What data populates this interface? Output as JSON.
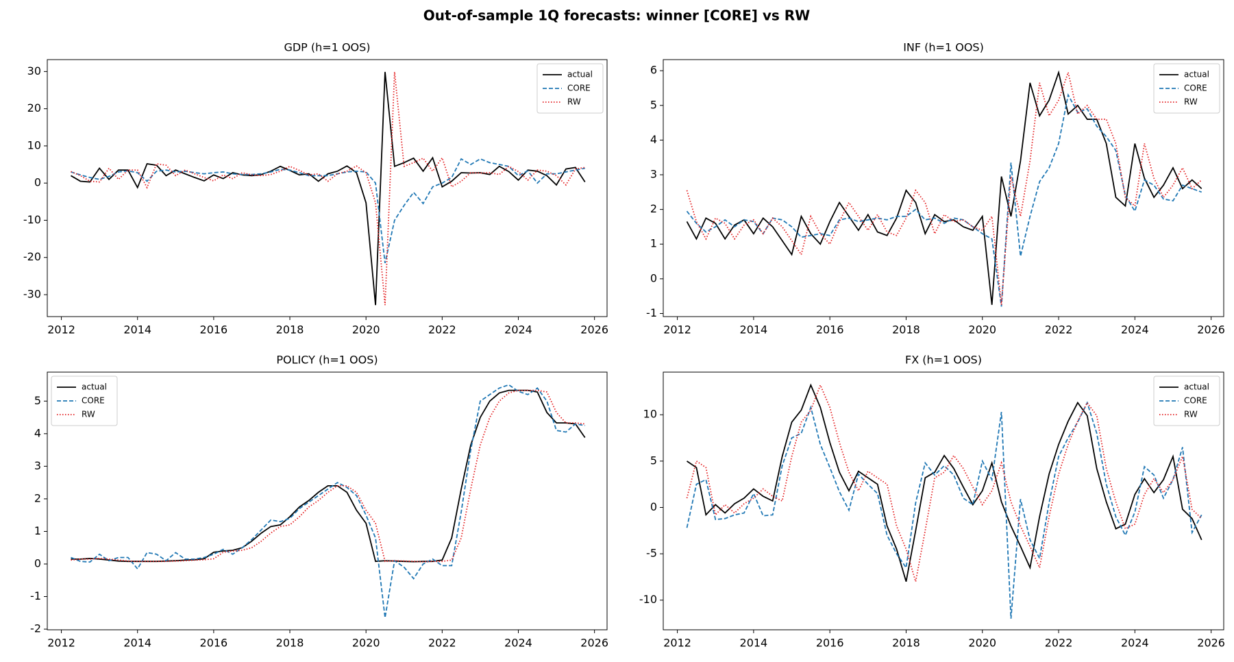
{
  "title": "Out-of-sample 1Q forecasts: winner [CORE] vs RW",
  "chart_data": [
    {
      "type": "line",
      "title": "GDP  (h=1 OOS)",
      "legend": "upper right",
      "grid": false,
      "xlim": [
        2011.63,
        2026.33
      ],
      "xticks": [
        2012,
        2014,
        2016,
        2018,
        2020,
        2022,
        2024,
        2026
      ],
      "ylim": [
        -35.9,
        33.2
      ],
      "yticks": [
        -30,
        -20,
        -10,
        0,
        10,
        20,
        30
      ],
      "x": [
        2012.25,
        2012.5,
        2012.75,
        2013,
        2013.25,
        2013.5,
        2013.75,
        2014,
        2014.25,
        2014.5,
        2014.75,
        2015,
        2015.25,
        2015.5,
        2015.75,
        2016,
        2016.25,
        2016.5,
        2016.75,
        2017,
        2017.25,
        2017.5,
        2017.75,
        2018,
        2018.25,
        2018.5,
        2018.75,
        2019,
        2019.25,
        2019.5,
        2019.75,
        2020,
        2020.25,
        2020.5,
        2020.75,
        2021,
        2021.25,
        2021.5,
        2021.75,
        2022,
        2022.25,
        2022.5,
        2022.75,
        2023,
        2023.25,
        2023.5,
        2023.75,
        2024,
        2024.25,
        2024.5,
        2024.75,
        2025,
        2025.25,
        2025.5,
        2025.75
      ],
      "series": [
        {
          "name": "actual",
          "color": "#000000",
          "style": "solid",
          "values": [
            2,
            0.5,
            0.3,
            4,
            1,
            3.5,
            3.5,
            -1.2,
            5.2,
            4.8,
            2,
            3.5,
            2.5,
            1.5,
            0.6,
            2.2,
            1.2,
            2.8,
            2.2,
            2,
            2.3,
            3.2,
            4.5,
            3.4,
            2.2,
            2.5,
            0.5,
            2.5,
            3.2,
            4.6,
            2.8,
            -5.3,
            -32.8,
            29.9,
            4.5,
            5.5,
            6.7,
            3.2,
            6.8,
            -1,
            0.5,
            2.8,
            2.7,
            2.8,
            2.3,
            4.5,
            3.1,
            0.8,
            3.5,
            3.2,
            2,
            -0.5,
            3.8,
            4.2,
            0.3
          ]
        },
        {
          "name": "CORE",
          "color": "#1f77b4",
          "style": "dashed",
          "values": [
            3,
            2.2,
            1.5,
            1,
            1.8,
            3,
            3.3,
            2.8,
            0.5,
            3.2,
            3.5,
            3,
            3.2,
            2.8,
            2.5,
            2.8,
            3,
            2.5,
            2.3,
            2.3,
            2.5,
            3,
            3.7,
            3.5,
            2.8,
            2,
            2,
            2,
            2.5,
            3,
            3.2,
            3,
            0,
            -21.5,
            -10,
            -6,
            -2.5,
            -5.5,
            -1,
            0,
            1.5,
            6.5,
            5,
            6.5,
            5.5,
            5,
            4.5,
            2,
            3.3,
            0,
            2.5,
            2.5,
            3,
            3.5,
            4
          ]
        },
        {
          "name": "RW",
          "color": "#e31a1c",
          "style": "dotted",
          "values": [
            3.1,
            2,
            0.5,
            0.3,
            4,
            1,
            3.5,
            3.5,
            -1.2,
            5.2,
            4.8,
            2,
            3.5,
            2.5,
            1.5,
            0.6,
            2.2,
            1.2,
            2.8,
            2.2,
            2,
            2.3,
            3.2,
            4.5,
            3.4,
            2.2,
            2.5,
            0.5,
            2.5,
            3.2,
            4.6,
            2.8,
            -5.3,
            -32.8,
            29.9,
            4.5,
            5.5,
            6.7,
            3.2,
            6.8,
            -1,
            0.5,
            2.8,
            2.7,
            2.8,
            2.3,
            4.5,
            3.1,
            0.8,
            3.5,
            3.2,
            2,
            -0.5,
            3.8,
            4.2
          ]
        }
      ]
    },
    {
      "type": "line",
      "title": "INF  (h=1 OOS)",
      "legend": "upper right",
      "grid": false,
      "xlim": [
        2011.63,
        2026.33
      ],
      "xticks": [
        2012,
        2014,
        2016,
        2018,
        2020,
        2022,
        2024,
        2026
      ],
      "ylim": [
        -1.09,
        6.32
      ],
      "yticks": [
        -1,
        0,
        1,
        2,
        3,
        4,
        5,
        6
      ],
      "x": [
        2012.25,
        2012.5,
        2012.75,
        2013,
        2013.25,
        2013.5,
        2013.75,
        2014,
        2014.25,
        2014.5,
        2014.75,
        2015,
        2015.25,
        2015.5,
        2015.75,
        2016,
        2016.25,
        2016.5,
        2016.75,
        2017,
        2017.25,
        2017.5,
        2017.75,
        2018,
        2018.25,
        2018.5,
        2018.75,
        2019,
        2019.25,
        2019.5,
        2019.75,
        2020,
        2020.25,
        2020.5,
        2020.75,
        2021,
        2021.25,
        2021.5,
        2021.75,
        2022,
        2022.25,
        2022.5,
        2022.75,
        2023,
        2023.25,
        2023.5,
        2023.75,
        2024,
        2024.25,
        2024.5,
        2024.75,
        2025,
        2025.25,
        2025.5,
        2025.75
      ],
      "series": [
        {
          "name": "actual",
          "color": "#000000",
          "style": "solid",
          "values": [
            1.65,
            1.15,
            1.75,
            1.6,
            1.15,
            1.55,
            1.7,
            1.3,
            1.75,
            1.5,
            1.1,
            0.7,
            1.8,
            1.3,
            1.0,
            1.65,
            2.2,
            1.8,
            1.4,
            1.85,
            1.35,
            1.25,
            1.75,
            2.55,
            2.2,
            1.3,
            1.85,
            1.65,
            1.7,
            1.5,
            1.4,
            1.8,
            -0.75,
            2.95,
            1.8,
            3.4,
            5.65,
            4.7,
            5.15,
            5.95,
            4.75,
            5.0,
            4.6,
            4.6,
            3.9,
            2.35,
            2.1,
            3.9,
            2.9,
            2.35,
            2.7,
            3.2,
            2.6,
            2.85,
            2.6
          ]
        },
        {
          "name": "CORE",
          "color": "#1f77b4",
          "style": "dashed",
          "values": [
            1.95,
            1.6,
            1.35,
            1.5,
            1.7,
            1.5,
            1.7,
            1.65,
            1.3,
            1.75,
            1.7,
            1.5,
            1.2,
            1.25,
            1.3,
            1.25,
            1.7,
            1.75,
            1.65,
            1.7,
            1.75,
            1.7,
            1.8,
            1.8,
            2.0,
            1.7,
            1.75,
            1.6,
            1.75,
            1.7,
            1.5,
            1.3,
            1.15,
            -0.8,
            3.35,
            0.65,
            1.8,
            2.8,
            3.2,
            3.9,
            5.3,
            4.8,
            4.9,
            4.4,
            4.1,
            3.7,
            2.4,
            1.95,
            2.85,
            2.7,
            2.3,
            2.25,
            2.7,
            2.6,
            2.5
          ]
        },
        {
          "name": "RW",
          "color": "#e31a1c",
          "style": "dotted",
          "values": [
            2.55,
            1.65,
            1.15,
            1.75,
            1.6,
            1.15,
            1.55,
            1.7,
            1.3,
            1.75,
            1.5,
            1.1,
            0.7,
            1.8,
            1.3,
            1.0,
            1.65,
            2.2,
            1.8,
            1.4,
            1.85,
            1.35,
            1.25,
            1.75,
            2.55,
            2.2,
            1.3,
            1.85,
            1.65,
            1.7,
            1.5,
            1.4,
            1.8,
            -0.75,
            2.95,
            1.8,
            3.4,
            5.65,
            4.7,
            5.15,
            5.95,
            4.75,
            5.0,
            4.6,
            4.6,
            3.9,
            2.35,
            2.1,
            3.9,
            2.9,
            2.35,
            2.7,
            3.2,
            2.6,
            2.85
          ]
        }
      ]
    },
    {
      "type": "line",
      "title": "POLICY  (h=1 OOS)",
      "legend": "upper left",
      "grid": false,
      "xlim": [
        2011.63,
        2026.33
      ],
      "xticks": [
        2012,
        2014,
        2016,
        2018,
        2020,
        2022,
        2024,
        2026
      ],
      "ylim": [
        -2.02,
        5.89
      ],
      "yticks": [
        -2,
        -1,
        0,
        1,
        2,
        3,
        4,
        5
      ],
      "x": [
        2012.25,
        2012.5,
        2012.75,
        2013,
        2013.25,
        2013.5,
        2013.75,
        2014,
        2014.25,
        2014.5,
        2014.75,
        2015,
        2015.25,
        2015.5,
        2015.75,
        2016,
        2016.25,
        2016.5,
        2016.75,
        2017,
        2017.25,
        2017.5,
        2017.75,
        2018,
        2018.25,
        2018.5,
        2018.75,
        2019,
        2019.25,
        2019.5,
        2019.75,
        2020,
        2020.25,
        2020.5,
        2020.75,
        2021,
        2021.25,
        2021.5,
        2021.75,
        2022,
        2022.25,
        2022.5,
        2022.75,
        2023,
        2023.25,
        2023.5,
        2023.75,
        2024,
        2024.25,
        2024.5,
        2024.75,
        2025,
        2025.25,
        2025.5,
        2025.75
      ],
      "series": [
        {
          "name": "actual",
          "color": "#000000",
          "style": "solid",
          "values": [
            0.15,
            0.15,
            0.17,
            0.15,
            0.12,
            0.09,
            0.08,
            0.08,
            0.08,
            0.08,
            0.09,
            0.1,
            0.12,
            0.13,
            0.16,
            0.36,
            0.4,
            0.42,
            0.5,
            0.7,
            0.95,
            1.15,
            1.2,
            1.45,
            1.75,
            1.95,
            2.2,
            2.4,
            2.4,
            2.2,
            1.65,
            1.25,
            0.08,
            0.1,
            0.09,
            0.08,
            0.07,
            0.08,
            0.08,
            0.12,
            0.8,
            2.3,
            3.65,
            4.5,
            5.0,
            5.25,
            5.33,
            5.33,
            5.33,
            5.28,
            4.65,
            4.33,
            4.33,
            4.3,
            3.88
          ]
        },
        {
          "name": "CORE",
          "color": "#1f77b4",
          "style": "dashed",
          "values": [
            0.2,
            0.08,
            0.06,
            0.3,
            0.1,
            0.2,
            0.2,
            -0.15,
            0.35,
            0.3,
            0.1,
            0.35,
            0.15,
            0.15,
            0.2,
            0.3,
            0.45,
            0.3,
            0.5,
            0.75,
            1.05,
            1.35,
            1.3,
            1.4,
            1.7,
            1.9,
            2.1,
            2.3,
            2.5,
            2.35,
            2.1,
            1.5,
            0.8,
            -1.65,
            0.1,
            -0.1,
            -0.45,
            0.0,
            0.15,
            -0.05,
            -0.05,
            1.6,
            3.5,
            5.0,
            5.2,
            5.4,
            5.5,
            5.3,
            5.2,
            5.4,
            5.0,
            4.1,
            4.05,
            4.3,
            4.25
          ]
        },
        {
          "name": "RW",
          "color": "#e31a1c",
          "style": "dotted",
          "values": [
            0.12,
            0.15,
            0.15,
            0.17,
            0.15,
            0.12,
            0.09,
            0.08,
            0.08,
            0.08,
            0.08,
            0.09,
            0.1,
            0.12,
            0.13,
            0.16,
            0.36,
            0.4,
            0.42,
            0.5,
            0.7,
            0.95,
            1.15,
            1.2,
            1.45,
            1.75,
            1.95,
            2.2,
            2.4,
            2.4,
            2.2,
            1.65,
            1.25,
            0.08,
            0.1,
            0.09,
            0.08,
            0.07,
            0.08,
            0.08,
            0.12,
            0.8,
            2.3,
            3.65,
            4.5,
            5.0,
            5.25,
            5.33,
            5.33,
            5.33,
            5.28,
            4.65,
            4.33,
            4.33,
            4.3
          ]
        }
      ]
    },
    {
      "type": "line",
      "title": "FX  (h=1 OOS)",
      "legend": "upper right",
      "grid": false,
      "xlim": [
        2011.63,
        2026.33
      ],
      "xticks": [
        2012,
        2014,
        2016,
        2018,
        2020,
        2022,
        2024,
        2026
      ],
      "ylim": [
        -13.2,
        14.6
      ],
      "yticks": [
        -10,
        -5,
        0,
        5,
        10
      ],
      "x": [
        2012.25,
        2012.5,
        2012.75,
        2013,
        2013.25,
        2013.5,
        2013.75,
        2014,
        2014.25,
        2014.5,
        2014.75,
        2015,
        2015.25,
        2015.5,
        2015.75,
        2016,
        2016.25,
        2016.5,
        2016.75,
        2017,
        2017.25,
        2017.5,
        2017.75,
        2018,
        2018.25,
        2018.5,
        2018.75,
        2019,
        2019.25,
        2019.5,
        2019.75,
        2020,
        2020.25,
        2020.5,
        2020.75,
        2021,
        2021.25,
        2021.5,
        2021.75,
        2022,
        2022.25,
        2022.5,
        2022.75,
        2023,
        2023.25,
        2023.5,
        2023.75,
        2024,
        2024.25,
        2024.5,
        2024.75,
        2025,
        2025.25,
        2025.5,
        2025.75
      ],
      "series": [
        {
          "name": "actual",
          "color": "#000000",
          "style": "solid",
          "values": [
            5.0,
            4.3,
            -0.8,
            0.3,
            -0.6,
            0.4,
            1.0,
            2.0,
            1.2,
            0.7,
            5.5,
            9.2,
            10.5,
            13.2,
            10.8,
            7.0,
            3.8,
            1.8,
            3.9,
            3.2,
            2.5,
            -2.0,
            -4.5,
            -8.0,
            -2.5,
            3.2,
            3.8,
            5.6,
            4.2,
            2.2,
            0.3,
            1.8,
            4.8,
            0.6,
            -2.0,
            -4.2,
            -6.5,
            -1.0,
            3.6,
            6.8,
            9.3,
            11.3,
            9.9,
            4.2,
            0.6,
            -2.3,
            -1.8,
            1.4,
            3.1,
            1.6,
            3.0,
            5.5,
            -0.2,
            -1.2,
            -3.5
          ]
        },
        {
          "name": "CORE",
          "color": "#1f77b4",
          "style": "dashed",
          "values": [
            -2.2,
            2.5,
            3.0,
            -1.3,
            -1.2,
            -0.8,
            -0.6,
            1.5,
            -0.9,
            -0.8,
            4.5,
            7.5,
            8.0,
            10.8,
            6.8,
            4.3,
            1.7,
            -0.3,
            3.6,
            2.5,
            1.5,
            -3.0,
            -5.0,
            -6.5,
            0.5,
            4.8,
            3.5,
            4.5,
            3.5,
            1.0,
            0.3,
            5.0,
            3.0,
            10.3,
            -12.0,
            0.9,
            -3.5,
            -5.5,
            0.5,
            5.5,
            7.5,
            9.2,
            11.3,
            8.0,
            2.5,
            -1.0,
            -3.0,
            -0.5,
            4.4,
            3.5,
            1.0,
            3.0,
            6.5,
            -2.7,
            -0.8
          ]
        },
        {
          "name": "RW",
          "color": "#e31a1c",
          "style": "dotted",
          "values": [
            1.0,
            5.0,
            4.3,
            -0.8,
            0.3,
            -0.6,
            0.4,
            1.0,
            2.0,
            1.2,
            0.7,
            5.5,
            9.2,
            10.5,
            13.2,
            10.8,
            7.0,
            3.8,
            1.8,
            3.9,
            3.2,
            2.5,
            -2.0,
            -4.5,
            -8.0,
            -2.5,
            3.2,
            3.8,
            5.6,
            4.2,
            2.2,
            0.3,
            1.8,
            4.8,
            0.6,
            -2.0,
            -4.2,
            -6.5,
            -1.0,
            3.6,
            6.8,
            9.3,
            11.3,
            9.9,
            4.2,
            0.6,
            -2.3,
            -1.8,
            1.4,
            3.1,
            1.6,
            3.0,
            5.5,
            -0.2,
            -1.2
          ]
        }
      ]
    }
  ]
}
